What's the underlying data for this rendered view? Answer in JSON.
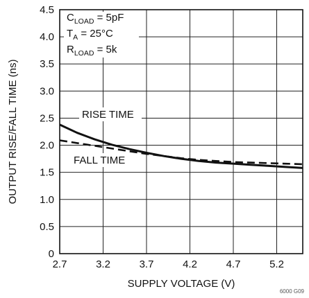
{
  "chart_data": {
    "type": "line",
    "title": "",
    "xlabel": "SUPPLY VOLTAGE (V)",
    "ylabel": "OUTPUT RISE/FALL TIME (ns)",
    "xlim": [
      2.7,
      5.5
    ],
    "ylim": [
      0,
      4.5
    ],
    "x_ticks": [
      "2.7",
      "3.2",
      "3.7",
      "4.2",
      "4.7",
      "5.2"
    ],
    "y_ticks": [
      "0",
      "0.5",
      "1.0",
      "1.5",
      "2.0",
      "2.5",
      "3.0",
      "3.5",
      "4.0",
      "4.5"
    ],
    "grid": true,
    "conditions": [
      {
        "main": "C",
        "sub": "LOAD",
        "rest": " = 5pF"
      },
      {
        "main": "T",
        "sub": "A",
        "rest": " = 25°C"
      },
      {
        "main": "R",
        "sub": "LOAD",
        "rest": " = 5k"
      }
    ],
    "series": [
      {
        "name": "RISE TIME",
        "style": "solid",
        "color": "#111111",
        "x": [
          2.7,
          2.9,
          3.1,
          3.3,
          3.5,
          3.7,
          3.9,
          4.1,
          4.3,
          4.5,
          4.7,
          4.9,
          5.1,
          5.3,
          5.5
        ],
        "y": [
          2.38,
          2.23,
          2.11,
          2.01,
          1.93,
          1.86,
          1.8,
          1.75,
          1.71,
          1.68,
          1.66,
          1.64,
          1.62,
          1.6,
          1.58
        ]
      },
      {
        "name": "FALL TIME",
        "style": "dashed",
        "color": "#111111",
        "x": [
          2.7,
          2.9,
          3.1,
          3.3,
          3.5,
          3.7,
          3.9,
          4.1,
          4.3,
          4.5,
          4.7,
          4.9,
          5.1,
          5.3,
          5.5
        ],
        "y": [
          2.09,
          2.04,
          1.99,
          1.94,
          1.89,
          1.84,
          1.8,
          1.76,
          1.73,
          1.71,
          1.69,
          1.68,
          1.67,
          1.66,
          1.65
        ]
      }
    ],
    "annotations": [
      "RISE TIME",
      "FALL TIME"
    ],
    "figure_code": "6000 G09"
  }
}
